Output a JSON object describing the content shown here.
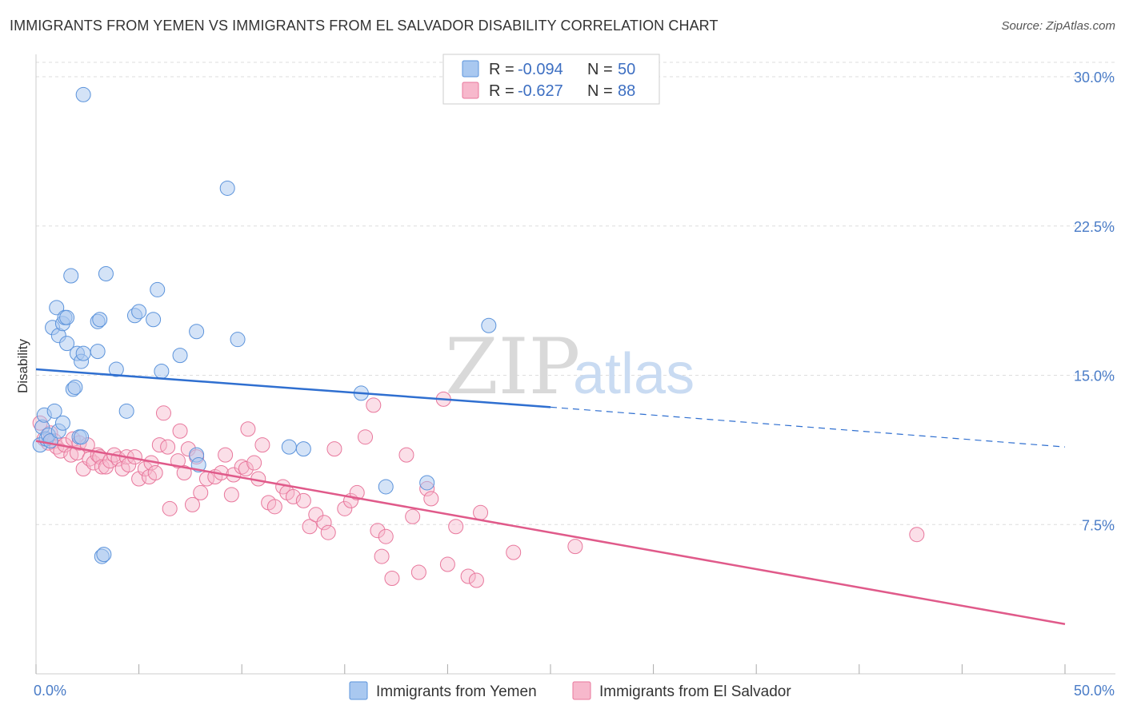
{
  "header": {
    "title": "IMMIGRANTS FROM YEMEN VS IMMIGRANTS FROM EL SALVADOR DISABILITY CORRELATION CHART",
    "source": "Source: ZipAtlas.com"
  },
  "watermark": {
    "zip": "ZIP",
    "atlas": "atlas"
  },
  "colors": {
    "yemen_fill": "#a9c8f0",
    "yemen_stroke": "#5b93db",
    "yemen_line": "#2f6fd0",
    "salvador_fill": "#f7b8cc",
    "salvador_stroke": "#e8779c",
    "salvador_line": "#e05a8a",
    "tick_label": "#4a7cc7",
    "grid": "#dddddd"
  },
  "legend": {
    "rows": [
      {
        "r_label": "R =",
        "r_value": "-0.094",
        "n_label": "N =",
        "n_value": "50"
      },
      {
        "r_label": "R =",
        "r_value": "-0.627",
        "n_label": "N =",
        "n_value": "88"
      }
    ]
  },
  "chart_data": {
    "type": "scatter",
    "title": "IMMIGRANTS FROM YEMEN VS IMMIGRANTS FROM EL SALVADOR DISABILITY CORRELATION CHART",
    "xlabel": "",
    "ylabel": "Disability",
    "xlim": [
      0,
      50
    ],
    "ylim": [
      0,
      31.5
    ],
    "x_tick_labels": [
      {
        "value": 0,
        "label": "0.0%"
      },
      {
        "value": 50,
        "label": "50.0%"
      }
    ],
    "x_minor_ticks": [
      0,
      5,
      10,
      15,
      20,
      25,
      30,
      35,
      40,
      45,
      50
    ],
    "y_tick_labels": [
      {
        "value": 7.5,
        "label": "7.5%"
      },
      {
        "value": 15,
        "label": "15.0%"
      },
      {
        "value": 22.5,
        "label": "22.5%"
      },
      {
        "value": 30,
        "label": "30.0%"
      }
    ],
    "grid": true,
    "legend_position": "top-center",
    "series": [
      {
        "name": "Immigrants from Yemen",
        "r": -0.094,
        "n": 50,
        "trend": {
          "x0": 0,
          "y0": 15.3,
          "x1": 25,
          "y1": 13.4,
          "dashed_to_x": 50,
          "dashed_to_y": 11.4
        },
        "points": [
          [
            0.2,
            11.5
          ],
          [
            0.3,
            12.4
          ],
          [
            0.4,
            13.0
          ],
          [
            0.5,
            11.8
          ],
          [
            0.6,
            12.0
          ],
          [
            0.7,
            11.7
          ],
          [
            0.9,
            13.2
          ],
          [
            1.1,
            12.2
          ],
          [
            1.3,
            12.6
          ],
          [
            0.8,
            17.4
          ],
          [
            1.0,
            18.4
          ],
          [
            1.1,
            17.0
          ],
          [
            1.3,
            17.6
          ],
          [
            1.4,
            17.9
          ],
          [
            1.5,
            17.9
          ],
          [
            1.5,
            16.6
          ],
          [
            1.7,
            20.0
          ],
          [
            1.8,
            14.3
          ],
          [
            1.9,
            14.4
          ],
          [
            2.0,
            16.1
          ],
          [
            2.1,
            11.9
          ],
          [
            2.2,
            11.9
          ],
          [
            2.2,
            15.7
          ],
          [
            2.3,
            16.1
          ],
          [
            2.3,
            29.1
          ],
          [
            3.0,
            17.7
          ],
          [
            3.0,
            16.2
          ],
          [
            3.1,
            17.8
          ],
          [
            3.2,
            5.9
          ],
          [
            3.3,
            6.0
          ],
          [
            3.4,
            20.1
          ],
          [
            3.9,
            15.3
          ],
          [
            4.4,
            13.2
          ],
          [
            4.8,
            18.0
          ],
          [
            5.0,
            18.2
          ],
          [
            5.7,
            17.8
          ],
          [
            5.9,
            19.3
          ],
          [
            6.1,
            15.2
          ],
          [
            7.0,
            16.0
          ],
          [
            7.8,
            17.2
          ],
          [
            7.8,
            11.0
          ],
          [
            7.9,
            10.5
          ],
          [
            9.3,
            24.4
          ],
          [
            9.8,
            16.8
          ],
          [
            12.3,
            11.4
          ],
          [
            13.0,
            11.3
          ],
          [
            15.8,
            14.1
          ],
          [
            17.0,
            9.4
          ],
          [
            19.0,
            9.6
          ],
          [
            22.0,
            17.5
          ]
        ]
      },
      {
        "name": "Immigrants from El Salvador",
        "r": -0.627,
        "n": 88,
        "trend": {
          "x0": 0,
          "y0": 11.7,
          "x1": 50,
          "y1": 2.5
        },
        "points": [
          [
            0.2,
            12.6
          ],
          [
            0.4,
            11.8
          ],
          [
            0.6,
            11.6
          ],
          [
            0.7,
            12.1
          ],
          [
            0.9,
            11.7
          ],
          [
            1.0,
            11.4
          ],
          [
            1.2,
            11.2
          ],
          [
            1.4,
            11.5
          ],
          [
            1.7,
            11.0
          ],
          [
            1.8,
            11.8
          ],
          [
            2.0,
            11.1
          ],
          [
            2.1,
            11.6
          ],
          [
            2.3,
            10.3
          ],
          [
            2.5,
            11.5
          ],
          [
            2.6,
            10.8
          ],
          [
            2.8,
            10.6
          ],
          [
            3.0,
            11.0
          ],
          [
            3.1,
            10.9
          ],
          [
            3.2,
            10.4
          ],
          [
            3.4,
            10.4
          ],
          [
            3.6,
            10.7
          ],
          [
            3.8,
            11.0
          ],
          [
            4.0,
            10.8
          ],
          [
            4.2,
            10.3
          ],
          [
            4.4,
            10.9
          ],
          [
            4.5,
            10.5
          ],
          [
            4.8,
            10.9
          ],
          [
            5.0,
            9.8
          ],
          [
            5.3,
            10.3
          ],
          [
            5.5,
            9.9
          ],
          [
            5.6,
            10.6
          ],
          [
            5.8,
            10.1
          ],
          [
            6.0,
            11.5
          ],
          [
            6.2,
            13.1
          ],
          [
            6.4,
            11.4
          ],
          [
            6.5,
            8.3
          ],
          [
            6.9,
            10.7
          ],
          [
            7.0,
            12.2
          ],
          [
            7.2,
            10.1
          ],
          [
            7.4,
            11.3
          ],
          [
            7.6,
            8.5
          ],
          [
            7.8,
            10.9
          ],
          [
            8.0,
            9.1
          ],
          [
            8.3,
            9.8
          ],
          [
            8.7,
            9.9
          ],
          [
            9.0,
            10.1
          ],
          [
            9.2,
            11.0
          ],
          [
            9.5,
            9.0
          ],
          [
            9.6,
            10.0
          ],
          [
            10.0,
            10.4
          ],
          [
            10.2,
            10.3
          ],
          [
            10.3,
            12.3
          ],
          [
            10.6,
            10.6
          ],
          [
            10.8,
            9.8
          ],
          [
            11.0,
            11.5
          ],
          [
            11.3,
            8.6
          ],
          [
            11.6,
            8.4
          ],
          [
            12.0,
            9.4
          ],
          [
            12.2,
            9.1
          ],
          [
            12.5,
            8.9
          ],
          [
            13.0,
            8.7
          ],
          [
            13.3,
            7.4
          ],
          [
            13.6,
            8.0
          ],
          [
            14.0,
            7.6
          ],
          [
            14.2,
            7.1
          ],
          [
            14.5,
            11.3
          ],
          [
            15.0,
            8.3
          ],
          [
            15.3,
            8.7
          ],
          [
            15.6,
            9.1
          ],
          [
            16.0,
            11.9
          ],
          [
            16.4,
            13.5
          ],
          [
            16.6,
            7.2
          ],
          [
            16.8,
            5.9
          ],
          [
            17.0,
            6.9
          ],
          [
            17.3,
            4.8
          ],
          [
            18.0,
            11.0
          ],
          [
            18.3,
            7.9
          ],
          [
            18.6,
            5.1
          ],
          [
            19.0,
            9.3
          ],
          [
            19.2,
            8.8
          ],
          [
            19.8,
            13.8
          ],
          [
            20.0,
            5.5
          ],
          [
            20.4,
            7.4
          ],
          [
            21.0,
            4.9
          ],
          [
            21.4,
            4.7
          ],
          [
            21.6,
            8.1
          ],
          [
            23.2,
            6.1
          ],
          [
            26.2,
            6.4
          ]
        ],
        "outliers": [
          [
            42.8,
            7.0
          ]
        ]
      }
    ]
  }
}
